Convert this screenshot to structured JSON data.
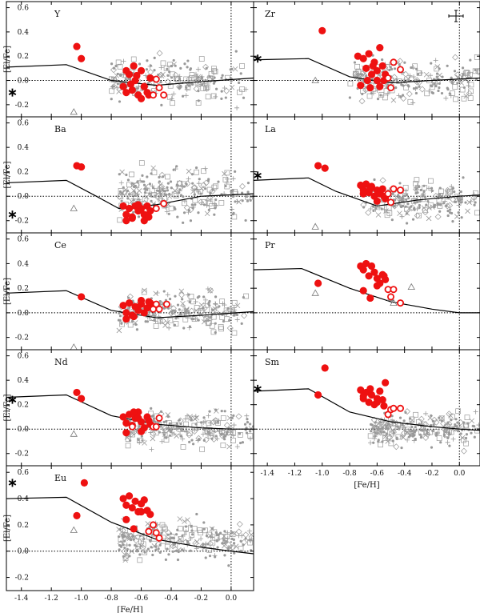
{
  "figure": {
    "xlabel": "[Fe/H]",
    "ylabel": "[El/Fe]"
  },
  "style": {
    "program_star_color": "#ee1111",
    "comparison_color": "#999999",
    "model_color": "#000000"
  },
  "chart_data": [
    {
      "type": "scatter",
      "element": "Y",
      "xlim": [
        -1.5,
        0.15
      ],
      "ylim": [
        -0.3,
        0.65
      ],
      "xticks": [
        -1.4,
        -1.2,
        -1.0,
        -0.8,
        -0.6,
        -0.4,
        -0.2,
        0.0
      ],
      "yticks": [
        -0.2,
        0.0,
        0.2,
        0.4,
        0.6
      ],
      "solar_marker": [
        -1.46,
        -0.1
      ],
      "model_line": {
        "x": [
          -1.5,
          -1.1,
          -0.8,
          -0.5,
          -0.2,
          0.15
        ],
        "y": [
          0.11,
          0.13,
          0.0,
          -0.04,
          -0.01,
          0.02
        ]
      },
      "program_filled": {
        "x": [
          -1.03,
          -1.0,
          -0.72,
          -0.7,
          -0.68,
          -0.66,
          -0.64,
          -0.62,
          -0.6,
          -0.58,
          -0.56,
          -0.54,
          -0.7,
          -0.65,
          -0.6,
          -0.55,
          -0.67,
          -0.63
        ],
        "y": [
          0.28,
          0.18,
          -0.05,
          -0.1,
          0.05,
          -0.08,
          0.0,
          -0.12,
          0.08,
          -0.05,
          -0.1,
          0.02,
          0.08,
          0.12,
          -0.15,
          -0.12,
          -0.03,
          0.04
        ]
      },
      "program_open": {
        "x": [
          -0.52,
          -0.5,
          -0.48,
          -0.45
        ],
        "y": [
          -0.12,
          0.01,
          -0.06,
          -0.12
        ]
      },
      "comparison_cloud": {
        "n": 220,
        "xrange": [
          -0.8,
          0.15
        ],
        "ymean": 0.0,
        "yspread": 0.12,
        "seed": 11
      },
      "pop2_points": {
        "x": [
          -1.05
        ],
        "y": [
          -0.26
        ]
      },
      "show_error_bar": false,
      "show_xlabel": false
    },
    {
      "type": "scatter",
      "element": "Zr",
      "xlim": [
        -1.5,
        0.15
      ],
      "ylim": [
        -0.3,
        0.65
      ],
      "xticks": [
        -1.4,
        -1.2,
        -1.0,
        -0.8,
        -0.6,
        -0.4,
        -0.2,
        0.0
      ],
      "yticks": [
        -0.2,
        0.0,
        0.2,
        0.4,
        0.6
      ],
      "solar_marker": [
        -1.47,
        0.18
      ],
      "model_line": {
        "x": [
          -1.5,
          -1.1,
          -0.8,
          -0.5,
          -0.2,
          0.15
        ],
        "y": [
          0.17,
          0.18,
          0.03,
          -0.02,
          0.0,
          0.02
        ]
      },
      "program_filled": {
        "x": [
          -1.0,
          -0.74,
          -0.7,
          -0.68,
          -0.66,
          -0.64,
          -0.62,
          -0.6,
          -0.58,
          -0.56,
          -0.54,
          -0.72,
          -0.65,
          -0.6,
          -0.55,
          -0.58,
          -0.67,
          -0.63
        ],
        "y": [
          0.41,
          0.2,
          0.18,
          0.1,
          0.22,
          0.05,
          0.15,
          0.08,
          -0.05,
          0.12,
          0.05,
          -0.04,
          -0.06,
          0.0,
          0.0,
          0.27,
          0.0,
          0.12
        ]
      },
      "program_open": {
        "x": [
          -0.52,
          -0.5,
          -0.48,
          -0.43
        ],
        "y": [
          0.02,
          -0.06,
          0.15,
          0.09
        ]
      },
      "comparison_cloud": {
        "n": 220,
        "xrange": [
          -0.8,
          0.15
        ],
        "ymean": 0.0,
        "yspread": 0.12,
        "seed": 23
      },
      "pop2_points": {
        "x": [
          -1.05
        ],
        "y": [
          0.0
        ]
      },
      "show_error_bar": true,
      "show_xlabel": false
    },
    {
      "type": "scatter",
      "element": "Ba",
      "xlim": [
        -1.5,
        0.15
      ],
      "ylim": [
        -0.3,
        0.65
      ],
      "xticks": [
        -1.4,
        -1.2,
        -1.0,
        -0.8,
        -0.6,
        -0.4,
        -0.2,
        0.0
      ],
      "yticks": [
        -0.2,
        0.0,
        0.2,
        0.4,
        0.6
      ],
      "solar_marker": [
        -1.46,
        -0.15
      ],
      "model_line": {
        "x": [
          -1.5,
          -1.1,
          -0.9,
          -0.75,
          -0.5,
          -0.2,
          0.15
        ],
        "y": [
          0.11,
          0.13,
          0.0,
          -0.1,
          -0.07,
          0.0,
          0.02
        ]
      },
      "program_filled": {
        "x": [
          -1.03,
          -1.0,
          -0.72,
          -0.7,
          -0.68,
          -0.66,
          -0.64,
          -0.62,
          -0.6,
          -0.58,
          -0.56,
          -0.54,
          -0.7,
          -0.66,
          -0.62,
          -0.58,
          -0.55
        ],
        "y": [
          0.25,
          0.24,
          -0.08,
          -0.15,
          -0.1,
          -0.18,
          -0.08,
          -0.12,
          -0.1,
          -0.15,
          -0.08,
          -0.12,
          -0.2,
          -0.17,
          -0.07,
          -0.2,
          -0.17
        ]
      },
      "program_open": {
        "x": [
          -0.5,
          -0.45
        ],
        "y": [
          -0.1,
          -0.06
        ]
      },
      "comparison_cloud": {
        "n": 260,
        "xrange": [
          -0.75,
          0.15
        ],
        "ymean": 0.02,
        "yspread": 0.14,
        "seed": 37
      },
      "pop2_points": {
        "x": [
          -1.05
        ],
        "y": [
          -0.1
        ]
      },
      "show_error_bar": false,
      "show_xlabel": false
    },
    {
      "type": "scatter",
      "element": "La",
      "xlim": [
        -1.5,
        0.15
      ],
      "ylim": [
        -0.3,
        0.65
      ],
      "xticks": [
        -1.4,
        -1.2,
        -1.0,
        -0.8,
        -0.6,
        -0.4,
        -0.2,
        0.0
      ],
      "yticks": [
        -0.2,
        0.0,
        0.2,
        0.4,
        0.6
      ],
      "solar_marker": [
        -1.47,
        0.17
      ],
      "model_line": {
        "x": [
          -1.5,
          -1.1,
          -0.9,
          -0.6,
          -0.3,
          0.0,
          0.15
        ],
        "y": [
          0.13,
          0.15,
          0.04,
          -0.08,
          -0.03,
          0.0,
          0.01
        ]
      },
      "program_filled": {
        "x": [
          -1.03,
          -0.98,
          -0.72,
          -0.7,
          -0.68,
          -0.66,
          -0.64,
          -0.62,
          -0.6,
          -0.58,
          -0.56,
          -0.54,
          -0.7,
          -0.65,
          -0.6,
          -0.55
        ],
        "y": [
          0.25,
          0.23,
          0.09,
          0.05,
          0.1,
          0.03,
          0.08,
          0.0,
          0.05,
          0.02,
          0.06,
          -0.02,
          0.02,
          0.06,
          -0.04,
          0.0
        ]
      },
      "program_open": {
        "x": [
          -0.52,
          -0.5,
          -0.48,
          -0.43
        ],
        "y": [
          0.02,
          -0.05,
          0.06,
          0.05
        ]
      },
      "comparison_cloud": {
        "n": 220,
        "xrange": [
          -0.7,
          0.15
        ],
        "ymean": -0.04,
        "yspread": 0.1,
        "seed": 41
      },
      "pop2_points": {
        "x": [
          -1.05
        ],
        "y": [
          -0.25
        ]
      },
      "show_error_bar": false,
      "show_xlabel": false
    },
    {
      "type": "scatter",
      "element": "Ce",
      "xlim": [
        -1.5,
        0.15
      ],
      "ylim": [
        -0.3,
        0.65
      ],
      "xticks": [
        -1.4,
        -1.2,
        -1.0,
        -0.8,
        -0.6,
        -0.4,
        -0.2,
        0.0
      ],
      "yticks": [
        -0.2,
        0.0,
        0.2,
        0.4,
        0.6
      ],
      "solar_marker": null,
      "model_line": {
        "x": [
          -1.5,
          -1.1,
          -0.8,
          -0.5,
          -0.2,
          0.15
        ],
        "y": [
          0.16,
          0.18,
          0.02,
          -0.04,
          -0.02,
          0.01
        ]
      },
      "program_filled": {
        "x": [
          -1.0,
          -0.72,
          -0.7,
          -0.68,
          -0.66,
          -0.64,
          -0.62,
          -0.6,
          -0.58,
          -0.56,
          -0.54,
          -0.7,
          -0.65,
          -0.6,
          -0.55
        ],
        "y": [
          0.13,
          0.06,
          0.0,
          0.08,
          -0.02,
          0.05,
          0.02,
          0.07,
          0.0,
          0.04,
          0.08,
          -0.05,
          -0.03,
          0.1,
          0.09
        ]
      },
      "program_open": {
        "x": [
          -0.52,
          -0.5,
          -0.48,
          -0.43
        ],
        "y": [
          0.03,
          0.07,
          0.03,
          0.07
        ]
      },
      "comparison_cloud": {
        "n": 220,
        "xrange": [
          -0.75,
          0.15
        ],
        "ymean": 0.02,
        "yspread": 0.11,
        "seed": 53
      },
      "pop2_points": {
        "x": [
          -1.05
        ],
        "y": [
          -0.28
        ]
      },
      "show_error_bar": false,
      "show_xlabel": false
    },
    {
      "type": "scatter",
      "element": "Pr",
      "xlim": [
        -1.5,
        0.15
      ],
      "ylim": [
        -0.3,
        0.65
      ],
      "xticks": [
        -1.4,
        -1.2,
        -1.0,
        -0.8,
        -0.6,
        -0.4,
        -0.2,
        0.0
      ],
      "yticks": [
        -0.2,
        0.0,
        0.2,
        0.4,
        0.6
      ],
      "solar_marker": null,
      "model_line": {
        "x": [
          -1.5,
          -1.15,
          -0.8,
          -0.5,
          -0.2,
          0.0,
          0.15
        ],
        "y": [
          0.35,
          0.36,
          0.2,
          0.09,
          0.03,
          0.0,
          0.0
        ]
      },
      "program_filled": {
        "x": [
          -1.03,
          -0.72,
          -0.7,
          -0.68,
          -0.66,
          -0.64,
          -0.62,
          -0.6,
          -0.58,
          -0.56,
          -0.54,
          -0.7,
          -0.65,
          -0.6,
          -0.55
        ],
        "y": [
          0.24,
          0.38,
          0.35,
          0.4,
          0.3,
          0.38,
          0.33,
          0.28,
          0.24,
          0.31,
          0.27,
          0.18,
          0.12,
          0.22,
          0.3
        ]
      },
      "program_open": {
        "x": [
          -0.52,
          -0.5,
          -0.48,
          -0.43
        ],
        "y": [
          0.19,
          0.13,
          0.19,
          0.08
        ]
      },
      "comparison_cloud": {
        "n": 0,
        "xrange": [
          -0.7,
          0.1
        ],
        "ymean": 0.0,
        "yspread": 0.1,
        "seed": 61
      },
      "pop2_points": {
        "x": [
          -1.05,
          -0.5,
          -0.48,
          -0.35
        ],
        "y": [
          0.16,
          0.12,
          0.08,
          0.21
        ]
      },
      "show_error_bar": false,
      "show_xlabel": false
    },
    {
      "type": "scatter",
      "element": "Nd",
      "xlim": [
        -1.5,
        0.15
      ],
      "ylim": [
        -0.3,
        0.65
      ],
      "xticks": [
        -1.4,
        -1.2,
        -1.0,
        -0.8,
        -0.6,
        -0.4,
        -0.2,
        0.0
      ],
      "yticks": [
        -0.2,
        0.0,
        0.2,
        0.4,
        0.6
      ],
      "solar_marker": [
        -1.46,
        0.24
      ],
      "model_line": {
        "x": [
          -1.5,
          -1.1,
          -0.8,
          -0.5,
          -0.2,
          0.0,
          0.15
        ],
        "y": [
          0.26,
          0.28,
          0.11,
          0.04,
          0.01,
          0.0,
          0.0
        ]
      },
      "program_filled": {
        "x": [
          -1.03,
          -1.0,
          -0.72,
          -0.7,
          -0.68,
          -0.66,
          -0.64,
          -0.62,
          -0.6,
          -0.58,
          -0.56,
          -0.54,
          -0.7,
          -0.65,
          -0.6,
          -0.55,
          -0.62
        ],
        "y": [
          0.3,
          0.25,
          0.1,
          0.05,
          0.12,
          0.03,
          0.09,
          0.14,
          0.06,
          0.01,
          0.1,
          0.04,
          -0.03,
          0.14,
          -0.02,
          0.07,
          0.09
        ]
      },
      "program_open": {
        "x": [
          -0.66,
          -0.52,
          -0.5,
          -0.48
        ],
        "y": [
          0.02,
          0.02,
          0.02,
          0.09
        ]
      },
      "comparison_cloud": {
        "n": 230,
        "xrange": [
          -0.7,
          0.15
        ],
        "ymean": 0.0,
        "yspread": 0.1,
        "seed": 71
      },
      "pop2_points": {
        "x": [
          -1.05
        ],
        "y": [
          -0.04
        ]
      },
      "show_error_bar": false,
      "show_xlabel": false
    },
    {
      "type": "scatter",
      "element": "Sm",
      "xlim": [
        -1.5,
        0.15
      ],
      "ylim": [
        -0.3,
        0.65
      ],
      "xticks": [
        -1.4,
        -1.2,
        -1.0,
        -0.8,
        -0.6,
        -0.4,
        -0.2,
        0.0
      ],
      "yticks": [
        -0.2,
        0.0,
        0.2,
        0.4,
        0.6
      ],
      "solar_marker": [
        -1.47,
        0.33
      ],
      "model_line": {
        "x": [
          -1.5,
          -1.1,
          -0.8,
          -0.5,
          -0.2,
          0.0,
          0.15
        ],
        "y": [
          0.31,
          0.33,
          0.14,
          0.06,
          0.02,
          0.0,
          -0.01
        ]
      },
      "program_filled": {
        "x": [
          -1.03,
          -0.98,
          -0.72,
          -0.7,
          -0.68,
          -0.66,
          -0.64,
          -0.62,
          -0.6,
          -0.58,
          -0.56,
          -0.54,
          -0.7,
          -0.65,
          -0.6,
          -0.55
        ],
        "y": [
          0.28,
          0.5,
          0.32,
          0.25,
          0.3,
          0.22,
          0.28,
          0.2,
          0.25,
          0.31,
          0.24,
          0.38,
          0.27,
          0.33,
          0.22,
          0.19
        ]
      },
      "program_open": {
        "x": [
          -0.52,
          -0.5,
          -0.48,
          -0.43
        ],
        "y": [
          0.12,
          0.16,
          0.17,
          0.17
        ]
      },
      "comparison_cloud": {
        "n": 230,
        "xrange": [
          -0.65,
          0.15
        ],
        "ymean": 0.0,
        "yspread": 0.09,
        "seed": 83
      },
      "pop2_points": {
        "x": [],
        "y": []
      },
      "show_error_bar": false,
      "show_xlabel": true
    },
    {
      "type": "scatter",
      "element": "Eu",
      "xlim": [
        -1.5,
        0.15
      ],
      "ylim": [
        -0.3,
        0.65
      ],
      "xticks": [
        -1.4,
        -1.2,
        -1.0,
        -0.8,
        -0.6,
        -0.4,
        -0.2,
        0.0
      ],
      "yticks": [
        -0.2,
        0.0,
        0.2,
        0.4,
        0.6
      ],
      "solar_marker": [
        -1.46,
        0.52
      ],
      "model_line": {
        "x": [
          -1.5,
          -1.1,
          -0.8,
          -0.5,
          -0.2,
          0.0,
          0.15
        ],
        "y": [
          0.4,
          0.41,
          0.22,
          0.09,
          0.03,
          0.0,
          -0.02
        ]
      },
      "program_filled": {
        "x": [
          -1.03,
          -0.98,
          -0.72,
          -0.7,
          -0.68,
          -0.66,
          -0.64,
          -0.62,
          -0.6,
          -0.58,
          -0.56,
          -0.54,
          -0.7,
          -0.65,
          -0.6
        ],
        "y": [
          0.27,
          0.52,
          0.4,
          0.35,
          0.42,
          0.33,
          0.38,
          0.3,
          0.36,
          0.39,
          0.31,
          0.28,
          0.24,
          0.17,
          0.3
        ]
      },
      "program_open": {
        "x": [
          -0.55,
          -0.52,
          -0.5,
          -0.48
        ],
        "y": [
          0.15,
          0.2,
          0.14,
          0.1
        ]
      },
      "comparison_cloud": {
        "n": 240,
        "xrange": [
          -0.75,
          0.15
        ],
        "ymean": 0.08,
        "yspread": 0.1,
        "seed": 97
      },
      "pop2_points": {
        "x": [
          -1.05
        ],
        "y": [
          0.16
        ]
      },
      "show_error_bar": false,
      "show_xlabel": true
    }
  ]
}
